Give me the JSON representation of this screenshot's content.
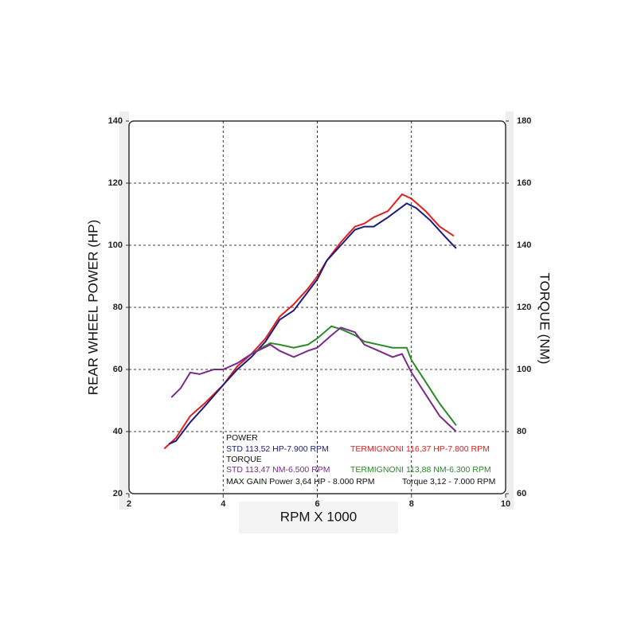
{
  "chart_data": {
    "type": "line",
    "y_label": "REAR WHEEL POWER (HP)",
    "y2_label": "TORQUE (NM)",
    "x_label": "RPM X 1000",
    "xlim": [
      2,
      10
    ],
    "xticks": [
      2,
      4,
      6,
      8,
      10
    ],
    "ylim": [
      20,
      140
    ],
    "yticks": [
      20,
      40,
      60,
      80,
      100,
      120,
      140
    ],
    "y2lim": [
      60,
      180
    ],
    "y2ticks": [
      60,
      80,
      100,
      120,
      140,
      160,
      180
    ],
    "grid": true,
    "annotations": [
      "POWER",
      "TORQUE",
      "MAX GAIN Power 3,64 HP - 8.000 RPM",
      "Torque 3,12 - 7.000 RPM"
    ],
    "series": [
      {
        "name": "TERMIGNONI 116,37 HP-7.800 RPM",
        "color": "#e02020",
        "x": [
          2.75,
          3.0,
          3.3,
          3.6,
          4.0,
          4.3,
          4.6,
          4.9,
          5.2,
          5.5,
          5.8,
          6.0,
          6.2,
          6.5,
          6.8,
          7.0,
          7.2,
          7.5,
          7.8,
          8.0,
          8.3,
          8.6,
          8.9
        ],
        "values": [
          34.5,
          38,
          45,
          49,
          55,
          61,
          65,
          70,
          77,
          81,
          86,
          90,
          95,
          101,
          106,
          107,
          109,
          111,
          116.4,
          115,
          111,
          106,
          103
        ]
      },
      {
        "name": "STD 113,52 HP-7.900 RPM",
        "color": "#1c1c7c",
        "x": [
          2.85,
          3.0,
          3.3,
          3.6,
          4.0,
          4.3,
          4.6,
          4.9,
          5.2,
          5.5,
          5.8,
          6.0,
          6.2,
          6.5,
          6.8,
          7.0,
          7.2,
          7.5,
          7.9,
          8.1,
          8.4,
          8.7,
          8.95
        ],
        "values": [
          36,
          37,
          43,
          48,
          55,
          60,
          64,
          69,
          76,
          79,
          85,
          89,
          95,
          100,
          105,
          106,
          106,
          109,
          113.5,
          112,
          108,
          103,
          99
        ]
      },
      {
        "name": "TERMIGNONI 113,88 NM-6.300 RPM",
        "color": "#2a8a2a",
        "axis": "y2",
        "x": [
          4.6,
          5.0,
          5.2,
          5.5,
          5.8,
          6.0,
          6.3,
          6.5,
          6.8,
          7.0,
          7.3,
          7.6,
          7.9,
          8.0,
          8.3,
          8.6,
          8.95
        ],
        "values": [
          105,
          108.5,
          108,
          107,
          108,
          110,
          113.9,
          113,
          111,
          109,
          108,
          107,
          107,
          103,
          96,
          89,
          82
        ]
      },
      {
        "name": "STD 113,47 NM-6.500 RPM",
        "color": "#7a2a8a",
        "axis": "y2",
        "x": [
          2.9,
          3.1,
          3.3,
          3.5,
          3.8,
          4.0,
          4.3,
          4.6,
          5.0,
          5.2,
          5.5,
          5.8,
          6.0,
          6.3,
          6.5,
          6.8,
          7.0,
          7.3,
          7.6,
          7.8,
          8.0,
          8.3,
          8.6,
          8.95
        ],
        "values": [
          91,
          94,
          99,
          98.5,
          100,
          100,
          102,
          105,
          108,
          106,
          104,
          106,
          107,
          111,
          113.5,
          112,
          108,
          106,
          104,
          105,
          99,
          92,
          85,
          80
        ]
      }
    ]
  }
}
